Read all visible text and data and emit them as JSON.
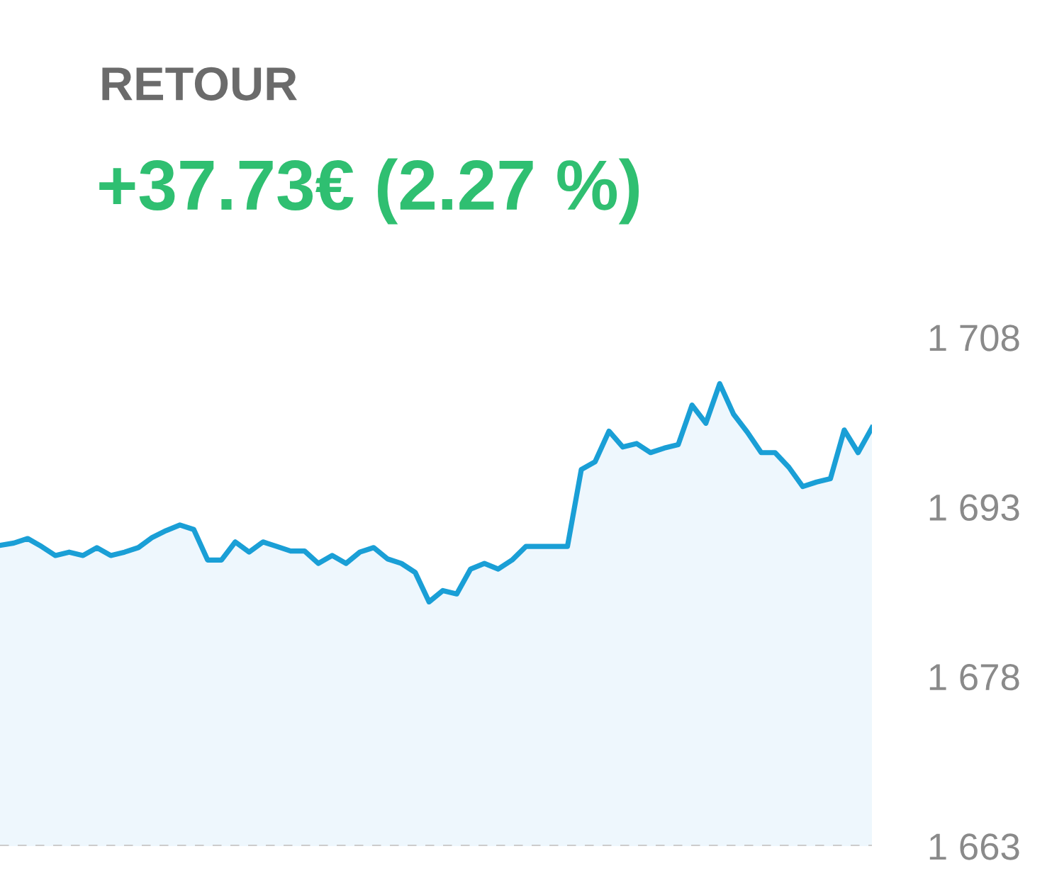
{
  "chart_data": {
    "type": "area",
    "title": "RETOUR",
    "subtitle": "+37.73€ (2.27 %)",
    "categories": [
      null,
      null,
      null,
      null,
      null,
      null,
      null,
      null,
      null,
      null,
      null,
      null,
      null,
      null,
      null,
      null,
      null,
      null,
      null,
      null,
      null,
      null,
      null,
      null,
      null,
      null,
      null,
      null,
      null,
      null,
      null,
      null,
      null,
      null,
      null,
      null,
      null,
      null,
      null,
      null,
      null,
      null,
      null,
      null,
      null,
      null,
      null,
      null,
      null,
      null,
      null,
      null,
      null,
      null,
      null,
      null,
      null,
      null,
      null,
      null,
      null,
      null,
      null,
      null
    ],
    "series": [
      {
        "color": "#1a9fd6",
        "values": [
          1689.6,
          1689.8,
          1690.2,
          1689.5,
          1688.7,
          1689.0,
          1688.7,
          1689.4,
          1688.7,
          1689.0,
          1689.4,
          1690.3,
          1690.9,
          1691.4,
          1691.0,
          1688.3,
          1688.3,
          1689.9,
          1689.0,
          1689.9,
          1689.5,
          1689.1,
          1689.1,
          1688.0,
          1688.7,
          1688.0,
          1689.0,
          1689.4,
          1688.4,
          1688.0,
          1687.2,
          1684.6,
          1685.6,
          1685.3,
          1687.5,
          1688.0,
          1687.5,
          1688.3,
          1689.5,
          1689.5,
          1689.5,
          1689.5,
          1696.3,
          1697.0,
          1699.7,
          1698.3,
          1698.6,
          1697.8,
          1698.2,
          1698.5,
          1702.0,
          1700.4,
          1703.9,
          1701.2,
          1699.6,
          1697.8,
          1697.8,
          1696.5,
          1694.8,
          1695.2,
          1695.5,
          1699.8,
          1697.8,
          1700.0
        ]
      }
    ],
    "ylim": [
      1663,
      1708
    ],
    "yticks": [
      {
        "value": 1663,
        "label": "1 663"
      },
      {
        "value": 1678,
        "label": "1 678"
      },
      {
        "value": 1693,
        "label": "1 693"
      },
      {
        "value": 1708,
        "label": "1 708"
      }
    ],
    "tick_labels": "y",
    "grid": false,
    "legend": false,
    "marker": "none",
    "line_style": "solid",
    "ref_lines": [
      {
        "axis": "y",
        "value": 1663,
        "color": "#cccccc",
        "line_style": "dashed"
      }
    ]
  }
}
